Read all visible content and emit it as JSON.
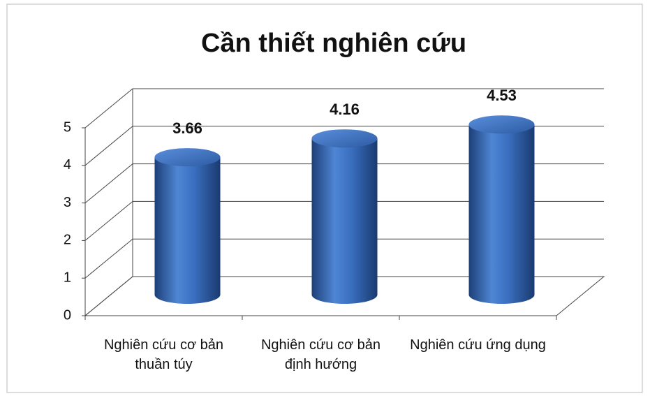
{
  "chart_data": {
    "type": "cylinder-bar",
    "title": "Cần thiết nghiên cứu",
    "categories": [
      "Nghiên cứu cơ bản thuần túy",
      "Nghiên cứu cơ bản định hướng",
      "Nghiên cứu ứng dụng"
    ],
    "values": [
      3.66,
      4.16,
      4.53
    ],
    "color": "#3a6fbf",
    "ylim": [
      0,
      5
    ],
    "yticks": [
      0,
      1,
      2,
      3,
      4,
      5
    ],
    "grid": true
  }
}
